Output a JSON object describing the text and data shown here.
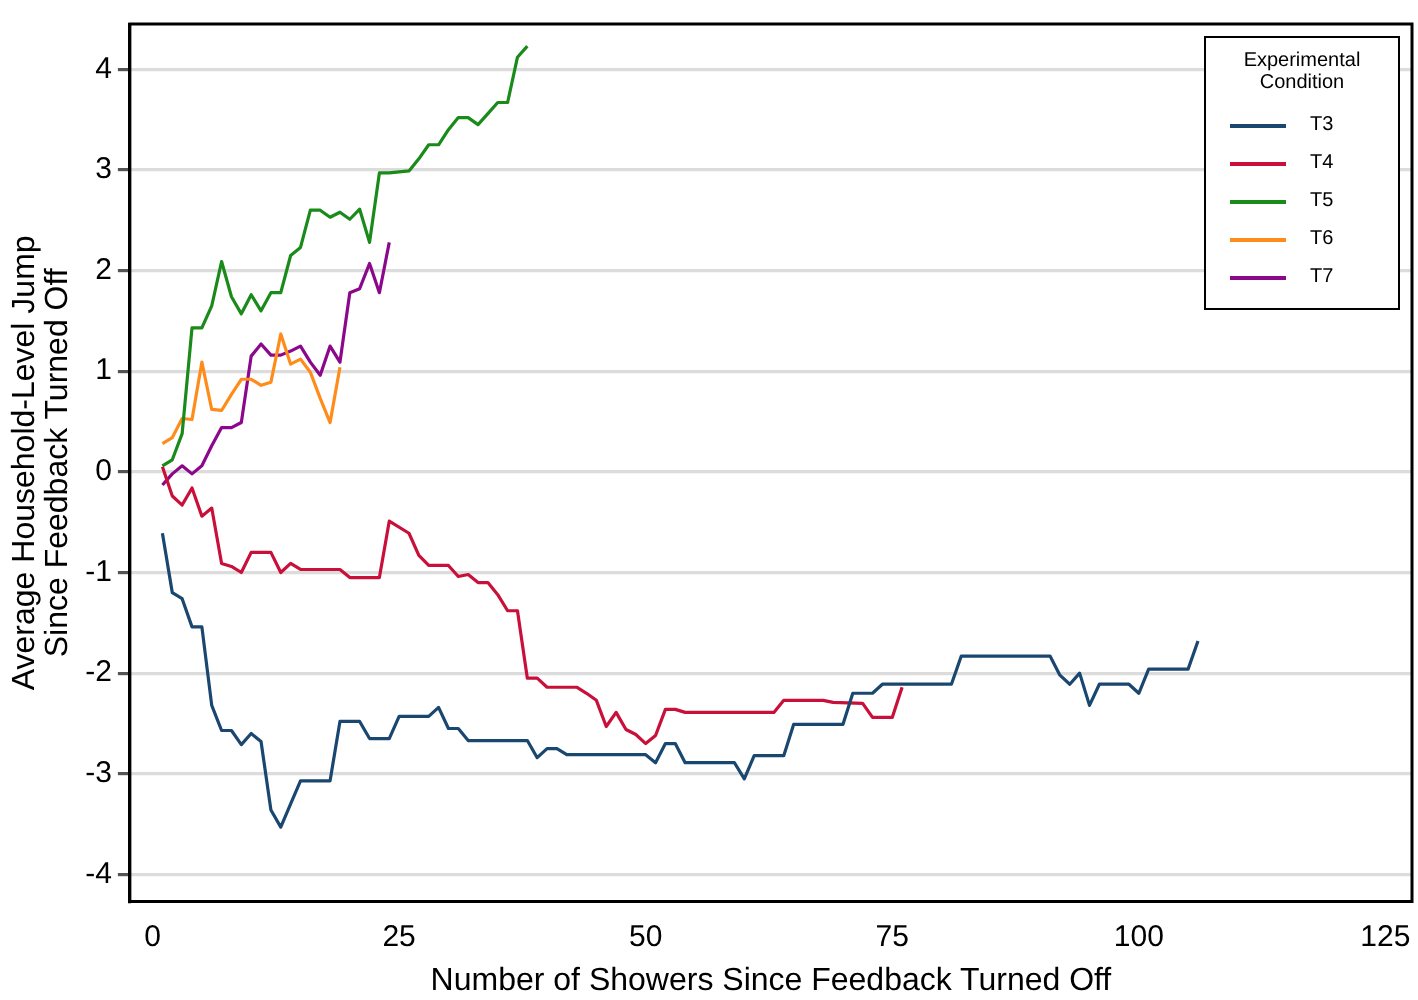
{
  "chart_data": {
    "type": "line",
    "xlabel": "Number of Showers Since Feedback Turned Off",
    "ylabel": "Average Household-Level Jump\nSince Feedback Turned Off",
    "legend_title": "Experimental Condition",
    "legend": "top right",
    "grid": "y",
    "marker": "none",
    "xlim": [
      -2.3,
      127.7
    ],
    "xticks": [
      0,
      25,
      50,
      75,
      100,
      125
    ],
    "ylim": [
      -4.27,
      4.45
    ],
    "yticks": [
      -4,
      -3,
      -2,
      -1,
      0,
      1,
      2,
      3,
      4
    ],
    "series": [
      {
        "name": "T3",
        "color": "#1a476f",
        "x": [
          1,
          2,
          3,
          4,
          5,
          6,
          7,
          8,
          9,
          10,
          11,
          12,
          13,
          14,
          15,
          18,
          19,
          21,
          22,
          24,
          25,
          28,
          29,
          30,
          31,
          32,
          38,
          39,
          40,
          41,
          42,
          48,
          50,
          51,
          52,
          53,
          54,
          59,
          60,
          61,
          64,
          65,
          70,
          71,
          73,
          74,
          81,
          82,
          91,
          92,
          93,
          94,
          95,
          96,
          99,
          100,
          101,
          105,
          106
        ],
        "values": [
          -0.61,
          -1.2,
          -1.26,
          -1.54,
          -1.54,
          -2.32,
          -2.57,
          -2.57,
          -2.71,
          -2.6,
          -2.68,
          -3.36,
          -3.53,
          -3.3,
          -3.07,
          -3.07,
          -2.48,
          -2.48,
          -2.65,
          -2.65,
          -2.43,
          -2.43,
          -2.34,
          -2.55,
          -2.55,
          -2.67,
          -2.67,
          -2.84,
          -2.75,
          -2.75,
          -2.81,
          -2.81,
          -2.81,
          -2.89,
          -2.7,
          -2.7,
          -2.89,
          -2.89,
          -3.05,
          -2.82,
          -2.82,
          -2.51,
          -2.51,
          -2.2,
          -2.2,
          -2.11,
          -2.11,
          -1.83,
          -1.83,
          -2.02,
          -2.11,
          -2.0,
          -2.32,
          -2.11,
          -2.11,
          -2.2,
          -1.96,
          -1.96,
          -1.68
        ]
      },
      {
        "name": "T4",
        "color": "#c8103a",
        "x": [
          1,
          2,
          3,
          4,
          5,
          6,
          7,
          8,
          9,
          10,
          12,
          13,
          14,
          15,
          19,
          20,
          23,
          24,
          26,
          27,
          28,
          30,
          31,
          32,
          33,
          34,
          35,
          36,
          37,
          38,
          39,
          40,
          43,
          44,
          45,
          46,
          47,
          48,
          49,
          50,
          51,
          52,
          53,
          54,
          63,
          64,
          68,
          69,
          72,
          73,
          75,
          76
        ],
        "values": [
          0.05,
          -0.24,
          -0.33,
          -0.16,
          -0.44,
          -0.36,
          -0.91,
          -0.94,
          -1.0,
          -0.8,
          -0.8,
          -1.0,
          -0.91,
          -0.97,
          -0.97,
          -1.05,
          -1.05,
          -0.49,
          -0.61,
          -0.83,
          -0.93,
          -0.93,
          -1.04,
          -1.02,
          -1.1,
          -1.1,
          -1.22,
          -1.38,
          -1.38,
          -2.05,
          -2.05,
          -2.14,
          -2.14,
          -2.2,
          -2.27,
          -2.53,
          -2.39,
          -2.56,
          -2.61,
          -2.7,
          -2.62,
          -2.36,
          -2.36,
          -2.39,
          -2.39,
          -2.27,
          -2.27,
          -2.29,
          -2.3,
          -2.44,
          -2.44,
          -2.14
        ]
      },
      {
        "name": "T5",
        "color": "#1a8a1a",
        "x": [
          1,
          2,
          3,
          4,
          5,
          6,
          7,
          8,
          9,
          10,
          11,
          12,
          13,
          14,
          15,
          16,
          17,
          18,
          19,
          20,
          21,
          22,
          23,
          24,
          26,
          27,
          28,
          29,
          30,
          31,
          32,
          33,
          34,
          35,
          36,
          37,
          38
        ],
        "values": [
          0.06,
          0.12,
          0.38,
          1.43,
          1.43,
          1.65,
          2.09,
          1.74,
          1.57,
          1.76,
          1.6,
          1.78,
          1.78,
          2.15,
          2.23,
          2.6,
          2.6,
          2.53,
          2.58,
          2.51,
          2.61,
          2.28,
          2.97,
          2.97,
          2.99,
          3.11,
          3.25,
          3.25,
          3.4,
          3.52,
          3.52,
          3.45,
          3.56,
          3.67,
          3.67,
          4.12,
          4.23
        ]
      },
      {
        "name": "T6",
        "color": "#ff8c1a",
        "x": [
          1,
          2,
          3,
          4,
          5,
          6,
          7,
          8,
          9,
          10,
          11,
          12,
          13,
          14,
          15,
          16,
          17,
          18,
          19
        ],
        "values": [
          0.28,
          0.34,
          0.53,
          0.52,
          1.09,
          0.62,
          0.61,
          0.77,
          0.92,
          0.92,
          0.86,
          0.89,
          1.37,
          1.07,
          1.12,
          0.99,
          0.73,
          0.49,
          1.04
        ]
      },
      {
        "name": "T7",
        "color": "#8b088b",
        "x": [
          1,
          2,
          3,
          4,
          5,
          6,
          7,
          8,
          9,
          10,
          11,
          12,
          13,
          14,
          15,
          16,
          17,
          18,
          19,
          20,
          21,
          22,
          23,
          24
        ],
        "values": [
          -0.13,
          -0.02,
          0.06,
          -0.02,
          0.06,
          0.26,
          0.44,
          0.44,
          0.49,
          1.15,
          1.27,
          1.16,
          1.16,
          1.2,
          1.25,
          1.09,
          0.96,
          1.25,
          1.09,
          1.78,
          1.82,
          2.07,
          1.78,
          2.28
        ]
      }
    ]
  }
}
